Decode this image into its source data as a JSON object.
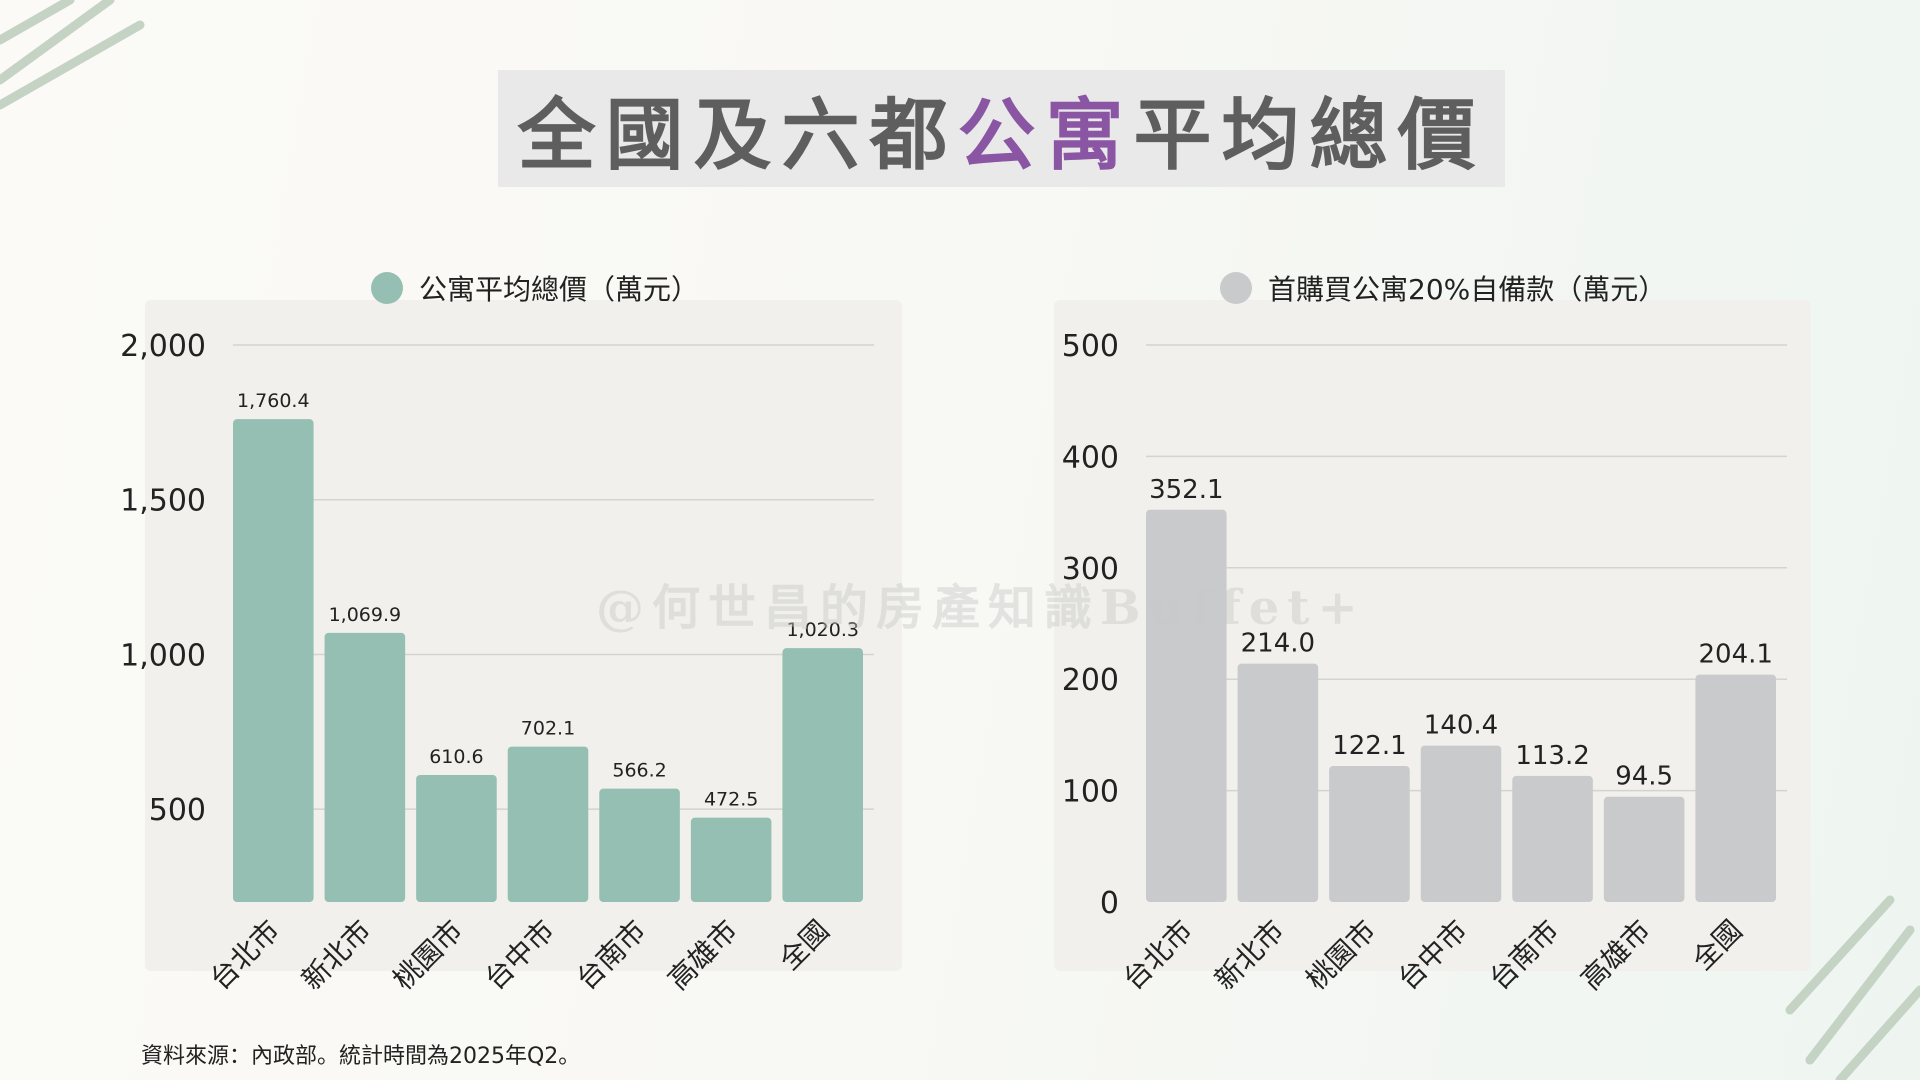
{
  "title": {
    "part1": "全國及六都",
    "highlight": "公寓",
    "part2": "平均總價",
    "highlight_color": "#8a55a3"
  },
  "watermark": "@何世昌的房產知識Buffet+",
  "source": "資料來源：內政部。統計時間為2025年Q2。",
  "chart_data": [
    {
      "type": "bar",
      "legend": "公寓平均總價（萬元）",
      "color": "#96bfb3",
      "categories": [
        "台北市",
        "新北市",
        "桃園市",
        "台中市",
        "台南市",
        "高雄市",
        "全國"
      ],
      "values": [
        1760.4,
        1069.9,
        610.6,
        702.1,
        566.2,
        472.5,
        1020.3
      ],
      "value_labels": [
        "1,760.4",
        "1,069.9",
        "610.6",
        "702.1",
        "566.2",
        "472.5",
        "1,020.3"
      ],
      "yticks": [
        500,
        1000,
        1500,
        2000
      ],
      "ytick_labels": [
        "500",
        "1,000",
        "1,500",
        "2,000"
      ],
      "ylim": [
        200,
        2000
      ],
      "grid": true,
      "legend_position": "top"
    },
    {
      "type": "bar",
      "legend": "首購買公寓20%自備款（萬元）",
      "color": "#c9cacc",
      "categories": [
        "台北市",
        "新北市",
        "桃園市",
        "台中市",
        "台南市",
        "高雄市",
        "全國"
      ],
      "values": [
        352.1,
        214.0,
        122.1,
        140.4,
        113.2,
        94.5,
        204.1
      ],
      "value_labels": [
        "352.1",
        "214.0",
        "122.1",
        "140.4",
        "113.2",
        "94.5",
        "204.1"
      ],
      "yticks": [
        0,
        100,
        200,
        300,
        400,
        500
      ],
      "ytick_labels": [
        "0",
        "100",
        "200",
        "300",
        "400",
        "500"
      ],
      "ylim": [
        0,
        500
      ],
      "grid": true,
      "legend_position": "top"
    }
  ]
}
